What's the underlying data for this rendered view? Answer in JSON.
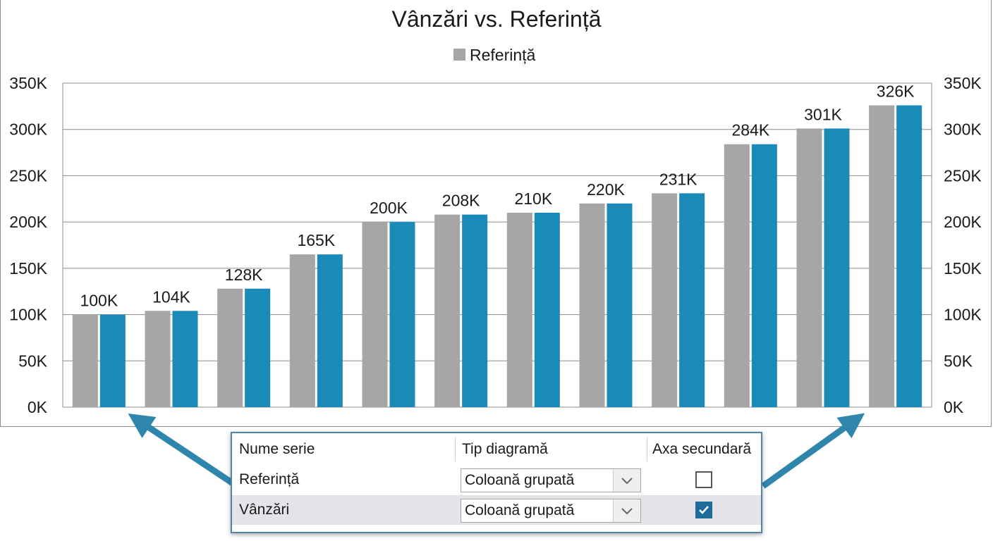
{
  "chart_data": {
    "type": "bar",
    "title": "Vânzări vs. Referință",
    "legend": {
      "entries": [
        "Referință"
      ],
      "position": "top"
    },
    "categories": [
      "",
      "",
      "",
      "",
      "",
      "",
      "",
      "",
      "",
      "",
      "",
      ""
    ],
    "series": [
      {
        "name": "Referință",
        "axis": "primary",
        "color": "#a6a6a6",
        "values": [
          100000,
          104000,
          128000,
          165000,
          200000,
          208000,
          210000,
          220000,
          231000,
          284000,
          301000,
          326000
        ]
      },
      {
        "name": "Vânzări",
        "axis": "secondary",
        "color": "#1a8ab8",
        "values": [
          100000,
          104000,
          128000,
          165000,
          200000,
          208000,
          210000,
          220000,
          231000,
          284000,
          301000,
          326000
        ]
      }
    ],
    "data_labels": [
      "100K",
      "104K",
      "128K",
      "165K",
      "200K",
      "208K",
      "210K",
      "220K",
      "231K",
      "284K",
      "301K",
      "326K"
    ],
    "ylim": [
      0,
      350000
    ],
    "y_ticks": [
      "0K",
      "50K",
      "100K",
      "150K",
      "200K",
      "250K",
      "300K",
      "350K"
    ],
    "y2lim": [
      0,
      350000
    ],
    "y2_ticks": [
      "0K",
      "50K",
      "100K",
      "150K",
      "200K",
      "250K",
      "300K",
      "350K"
    ],
    "xlabel": "",
    "ylabel": "",
    "grid": true
  },
  "series_panel": {
    "headers": {
      "name": "Nume serie",
      "type": "Tip diagramă",
      "axis": "Axa secundară"
    },
    "rows": [
      {
        "name": "Referință",
        "chart_type": "Coloană grupată",
        "secondary_axis": false
      },
      {
        "name": "Vânzări",
        "chart_type": "Coloană grupată",
        "secondary_axis": true
      }
    ]
  },
  "colors": {
    "reference": "#a6a6a6",
    "sales": "#1a8ab8",
    "arrow": "#2f86ad",
    "checkbox_checked": "#1f6c9a"
  }
}
